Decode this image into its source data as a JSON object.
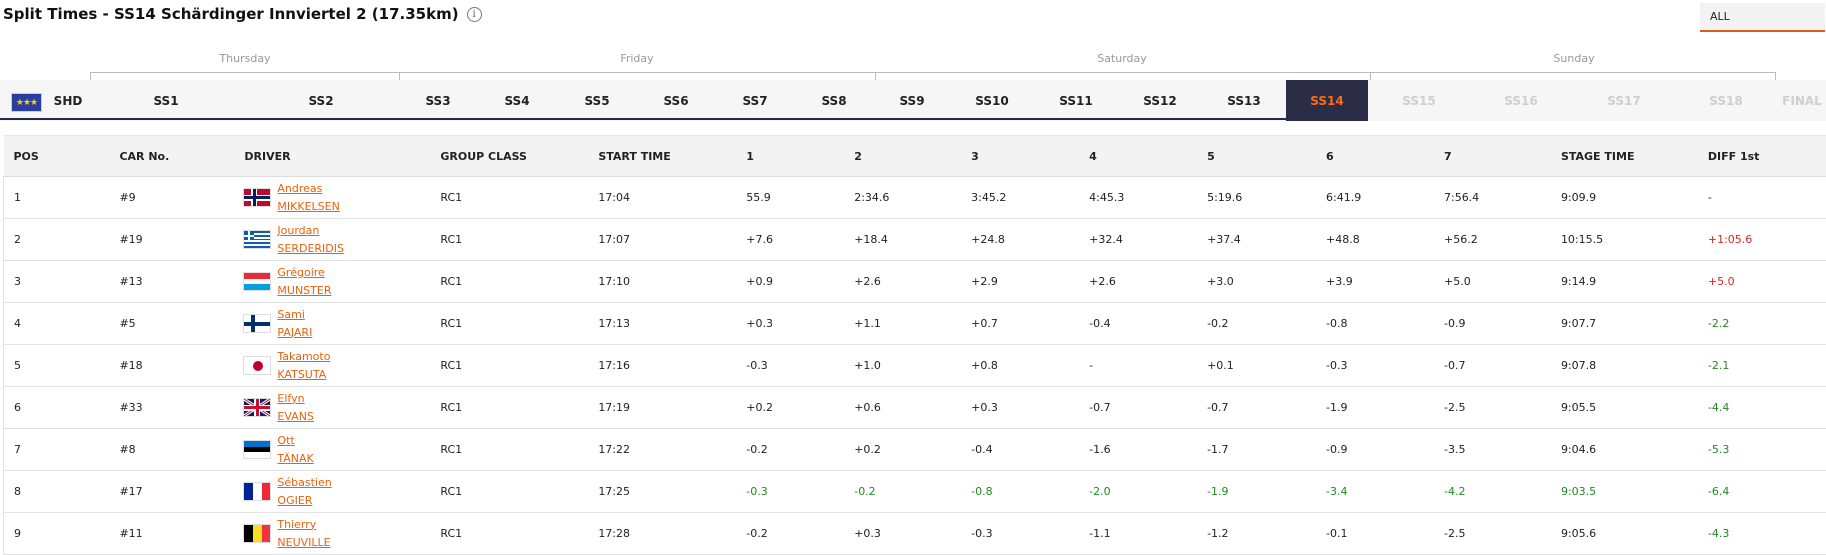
{
  "page": {
    "title": "Split Times - SS14 Schärdinger Innviertel 2 (17.35km)",
    "info_icon": "i",
    "filter_selected": "ALL"
  },
  "days": [
    {
      "label": "Thursday"
    },
    {
      "label": "Friday"
    },
    {
      "label": "Saturday"
    },
    {
      "label": "Sunday"
    }
  ],
  "stages": [
    {
      "label": "SHD",
      "state": "normal"
    },
    {
      "label": "SS1",
      "state": "normal"
    },
    {
      "label": "SS2",
      "state": "normal"
    },
    {
      "label": "SS3",
      "state": "normal"
    },
    {
      "label": "SS4",
      "state": "normal"
    },
    {
      "label": "SS5",
      "state": "normal"
    },
    {
      "label": "SS6",
      "state": "normal"
    },
    {
      "label": "SS7",
      "state": "normal"
    },
    {
      "label": "SS8",
      "state": "normal"
    },
    {
      "label": "SS9",
      "state": "normal"
    },
    {
      "label": "SS10",
      "state": "normal"
    },
    {
      "label": "SS11",
      "state": "normal"
    },
    {
      "label": "SS12",
      "state": "normal"
    },
    {
      "label": "SS13",
      "state": "normal"
    },
    {
      "label": "SS14",
      "state": "active"
    },
    {
      "label": "SS15",
      "state": "disabled"
    },
    {
      "label": "SS16",
      "state": "disabled"
    },
    {
      "label": "SS17",
      "state": "disabled"
    },
    {
      "label": "SS18",
      "state": "disabled"
    },
    {
      "label": "FINAL",
      "state": "disabled"
    }
  ],
  "colors": {
    "accent": "#e8620c",
    "nav_dark": "#2a2d45",
    "negative": "#1f8a1f",
    "positive": "#e02020"
  },
  "table": {
    "headers": [
      "POS",
      "CAR No.",
      "DRIVER",
      "GROUP CLASS",
      "START TIME",
      "1",
      "2",
      "3",
      "4",
      "5",
      "6",
      "7",
      "STAGE TIME",
      "DIFF 1st"
    ],
    "rows": [
      {
        "pos": "1",
        "car": "#9",
        "first": "Andreas",
        "last": "MIKKELSEN",
        "flag": "norway",
        "group": "RC1",
        "start": "17:04",
        "splits": [
          "55.9",
          "2:34.6",
          "3:45.2",
          "4:45.3",
          "5:19.6",
          "6:41.9",
          "7:56.4"
        ],
        "stage": "9:09.9",
        "diff": "-"
      },
      {
        "pos": "2",
        "car": "#19",
        "first": "Jourdan",
        "last": "SERDERIDIS",
        "flag": "greece",
        "group": "RC1",
        "start": "17:07",
        "splits": [
          "+7.6",
          "+18.4",
          "+24.8",
          "+32.4",
          "+37.4",
          "+48.8",
          "+56.2"
        ],
        "stage": "10:15.5",
        "diff": "+1:05.6"
      },
      {
        "pos": "3",
        "car": "#13",
        "first": "Grégoire",
        "last": "MUNSTER",
        "flag": "luxembourg",
        "group": "RC1",
        "start": "17:10",
        "splits": [
          "+0.9",
          "+2.6",
          "+2.9",
          "+2.6",
          "+3.0",
          "+3.9",
          "+5.0"
        ],
        "stage": "9:14.9",
        "diff": "+5.0"
      },
      {
        "pos": "4",
        "car": "#5",
        "first": "Sami",
        "last": "PAJARI",
        "flag": "finland",
        "group": "RC1",
        "start": "17:13",
        "splits": [
          "+0.3",
          "+1.1",
          "+0.7",
          "-0.4",
          "-0.2",
          "-0.8",
          "-0.9"
        ],
        "stage": "9:07.7",
        "diff": "-2.2"
      },
      {
        "pos": "5",
        "car": "#18",
        "first": "Takamoto",
        "last": "KATSUTA",
        "flag": "japan",
        "group": "RC1",
        "start": "17:16",
        "splits": [
          "-0.3",
          "+1.0",
          "+0.8",
          "-",
          "+0.1",
          "-0.3",
          "-0.7"
        ],
        "stage": "9:07.8",
        "diff": "-2.1"
      },
      {
        "pos": "6",
        "car": "#33",
        "first": "Elfyn",
        "last": "EVANS",
        "flag": "uk",
        "group": "RC1",
        "start": "17:19",
        "splits": [
          "+0.2",
          "+0.6",
          "+0.3",
          "-0.7",
          "-0.7",
          "-1.9",
          "-2.5"
        ],
        "stage": "9:05.5",
        "diff": "-4.4"
      },
      {
        "pos": "7",
        "car": "#8",
        "first": "Ott",
        "last": "TÄNAK",
        "flag": "estonia",
        "group": "RC1",
        "start": "17:22",
        "splits": [
          "-0.2",
          "+0.2",
          "-0.4",
          "-1.6",
          "-1.7",
          "-0.9",
          "-3.5"
        ],
        "stage": "9:04.6",
        "diff": "-5.3"
      },
      {
        "pos": "8",
        "car": "#17",
        "first": "Sébastien",
        "last": "OGIER",
        "flag": "france",
        "group": "RC1",
        "start": "17:25",
        "splits": [
          "-0.3",
          "-0.2",
          "-0.8",
          "-2.0",
          "-1.9",
          "-3.4",
          "-4.2"
        ],
        "stage": "9:03.5",
        "diff": "-6.4",
        "fastest": true
      },
      {
        "pos": "9",
        "car": "#11",
        "first": "Thierry",
        "last": "NEUVILLE",
        "flag": "belgium",
        "group": "RC1",
        "start": "17:28",
        "splits": [
          "-0.2",
          "+0.3",
          "-0.3",
          "-1.1",
          "-1.2",
          "-0.1",
          "-2.5"
        ],
        "stage": "9:05.6",
        "diff": "-4.3"
      }
    ]
  }
}
